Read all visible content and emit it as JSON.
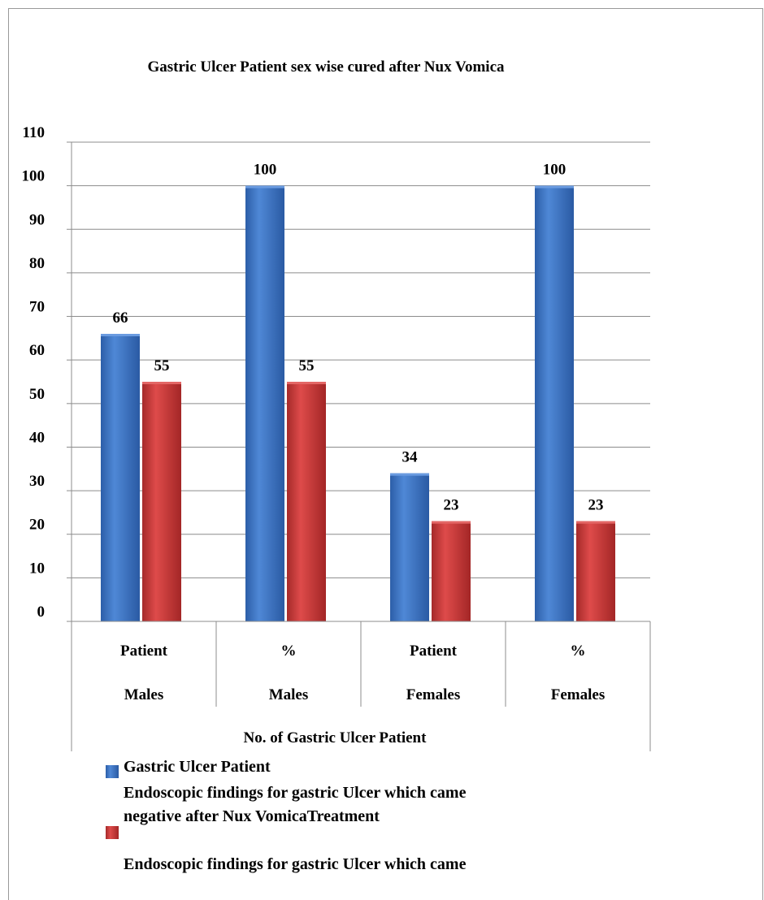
{
  "chart_data": {
    "type": "bar",
    "title": "Gastric Ulcer Patient sex wise cured after Nux Vomica",
    "xlabel": "No. of Gastric Ulcer Patient",
    "ylabel": "",
    "ylim": [
      0,
      110
    ],
    "yticks": [
      0,
      10,
      20,
      30,
      40,
      50,
      60,
      70,
      80,
      90,
      100,
      110
    ],
    "grid": true,
    "categories": [
      {
        "top": "Patient",
        "bottom": "Males"
      },
      {
        "top": "%",
        "bottom": "Males"
      },
      {
        "top": "Patient",
        "bottom": "Females"
      },
      {
        "top": "%",
        "bottom": "Females"
      }
    ],
    "series": [
      {
        "name": "Gastric Ulcer Patient",
        "color": "#3f77c4",
        "values": [
          66,
          100,
          34,
          100
        ]
      },
      {
        "name": "Endoscopic findings for gastric Ulcer which came negative after  Nux VomicaTreatment",
        "color": "#cf3b3a",
        "values": [
          55,
          55,
          23,
          23
        ]
      }
    ],
    "legend": {
      "position": "bottom",
      "lines": [
        "Gastric Ulcer Patient",
        "Endoscopic findings for gastric Ulcer which came",
        "negative after  Nux VomicaTreatment",
        "Endoscopic findings for gastric Ulcer which came"
      ]
    }
  }
}
